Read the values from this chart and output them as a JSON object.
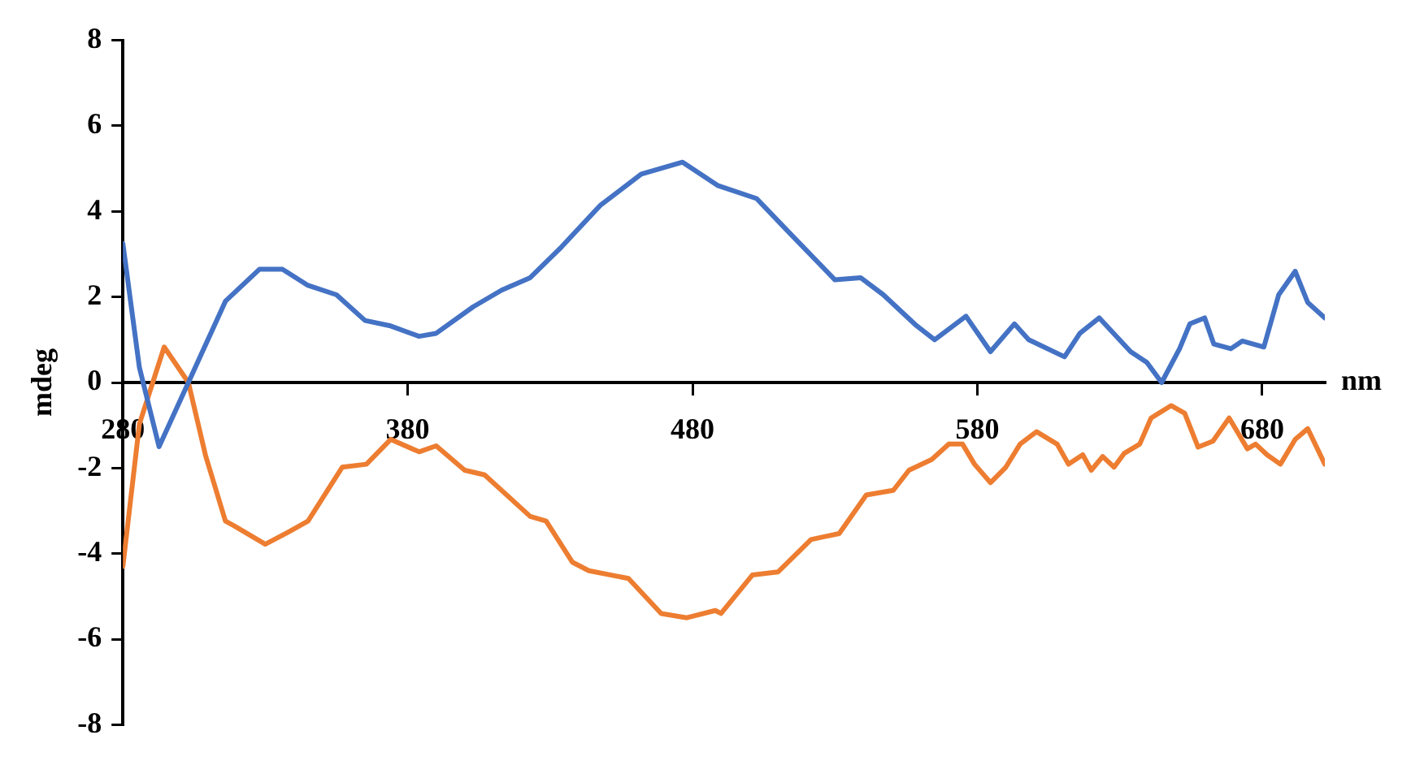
{
  "chart_data": {
    "type": "line",
    "xlabel": "nm",
    "ylabel": "mdeg",
    "xlim": [
      280,
      702
    ],
    "xticks": [
      280,
      380,
      480,
      580,
      680
    ],
    "ylim": [
      -8,
      8
    ],
    "yticks": [
      -8,
      -6,
      -4,
      -2,
      0,
      2,
      4,
      6,
      8
    ],
    "grid": false,
    "legend": false,
    "marker": "none",
    "line_style": "solid",
    "series": [
      {
        "color": "#4472c4",
        "x": [
          280,
          285.8,
          292.7,
          303,
          316,
          328,
          336,
          345,
          355,
          365,
          373.6,
          384,
          390,
          403,
          413,
          423,
          434,
          447.6,
          462,
          476.5,
          489,
          502.5,
          514,
          530,
          539,
          547,
          558.6,
          565,
          576,
          584.6,
          593,
          598,
          610.6,
          616,
          622.8,
          633.8,
          639.5,
          644.7,
          651,
          654.6,
          659.8,
          663,
          669,
          673,
          680.6,
          685.8,
          691.6,
          696,
          702
        ],
        "values": [
          3.25,
          0.35,
          -1.5,
          0,
          1.9,
          2.65,
          2.65,
          2.27,
          2.05,
          1.45,
          1.33,
          1.08,
          1.15,
          1.77,
          2.16,
          2.45,
          3.17,
          4.14,
          4.87,
          5.15,
          4.6,
          4.3,
          3.5,
          2.4,
          2.45,
          2.05,
          1.33,
          1.0,
          1.55,
          0.72,
          1.37,
          1.0,
          0.6,
          1.15,
          1.51,
          0.72,
          0.47,
          0,
          0.79,
          1.37,
          1.51,
          0.9,
          0.79,
          0.97,
          0.83,
          2.05,
          2.6,
          1.87,
          1.51
        ]
      },
      {
        "color": "#ed7d31",
        "x": [
          280,
          285.8,
          294.5,
          303,
          309,
          316,
          319,
          330,
          338,
          345,
          357,
          365.5,
          374,
          384,
          390,
          400,
          407,
          423,
          428.6,
          437.8,
          443.6,
          457.5,
          469,
          478,
          488,
          490,
          501,
          510,
          521.6,
          531.5,
          541,
          550.5,
          556,
          564,
          570,
          574.8,
          579,
          584.6,
          590,
          595,
          600.8,
          608,
          612,
          617,
          620,
          624,
          628,
          631.5,
          637,
          641,
          648,
          652.8,
          657.5,
          662.7,
          668.4,
          674.8,
          677.7,
          681.7,
          686.4,
          691.6,
          696,
          702
        ],
        "values": [
          -4.3,
          -0.97,
          0.83,
          0,
          -1.7,
          -3.24,
          -3.35,
          -3.78,
          -3.5,
          -3.24,
          -1.98,
          -1.91,
          -1.33,
          -1.62,
          -1.48,
          -2.05,
          -2.16,
          -3.13,
          -3.24,
          -4.2,
          -4.4,
          -4.58,
          -5.4,
          -5.5,
          -5.33,
          -5.4,
          -4.5,
          -4.43,
          -3.67,
          -3.53,
          -2.63,
          -2.52,
          -2.05,
          -1.8,
          -1.44,
          -1.44,
          -1.91,
          -2.34,
          -1.98,
          -1.44,
          -1.15,
          -1.44,
          -1.91,
          -1.69,
          -2.05,
          -1.73,
          -1.98,
          -1.66,
          -1.44,
          -0.83,
          -0.54,
          -0.72,
          -1.51,
          -1.37,
          -0.83,
          -1.55,
          -1.44,
          -1.69,
          -1.91,
          -1.33,
          -1.08,
          -1.91
        ]
      }
    ]
  }
}
